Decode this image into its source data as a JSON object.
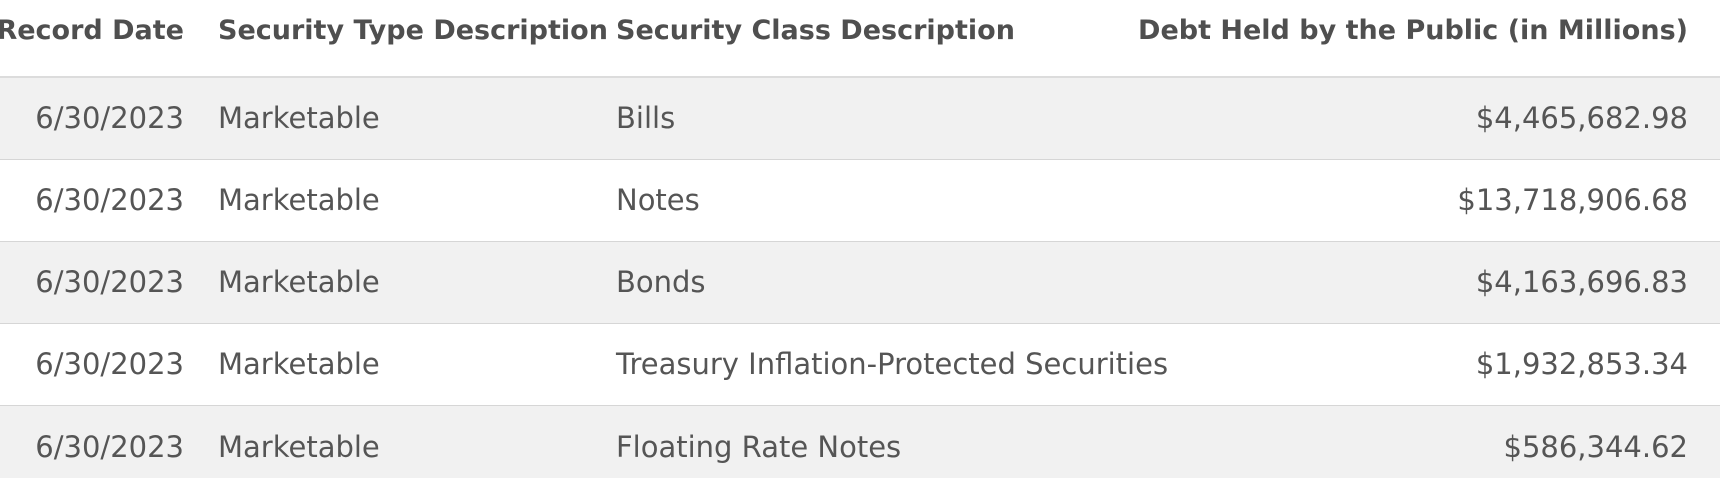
{
  "table": {
    "columns": [
      "Record Date",
      "Security Type Description",
      "Security Class Description",
      "Debt Held by the Public (in Millions)"
    ],
    "rows": [
      {
        "date": "6/30/2023",
        "type": "Marketable",
        "class": "Bills",
        "debt": "$4,465,682.98"
      },
      {
        "date": "6/30/2023",
        "type": "Marketable",
        "class": "Notes",
        "debt": "$13,718,906.68"
      },
      {
        "date": "6/30/2023",
        "type": "Marketable",
        "class": "Bonds",
        "debt": "$4,163,696.83"
      },
      {
        "date": "6/30/2023",
        "type": "Marketable",
        "class": "Treasury Inflation-Protected Securities",
        "debt": "$1,932,853.34"
      },
      {
        "date": "6/30/2023",
        "type": "Marketable",
        "class": "Floating Rate Notes",
        "debt": "$586,344.62"
      }
    ]
  },
  "colors": {
    "text": "#555555",
    "header_text": "#4f4f4f",
    "row_shade": "#f1f1f1",
    "row_plain": "#ffffff",
    "divider": "#d6d6d6"
  }
}
